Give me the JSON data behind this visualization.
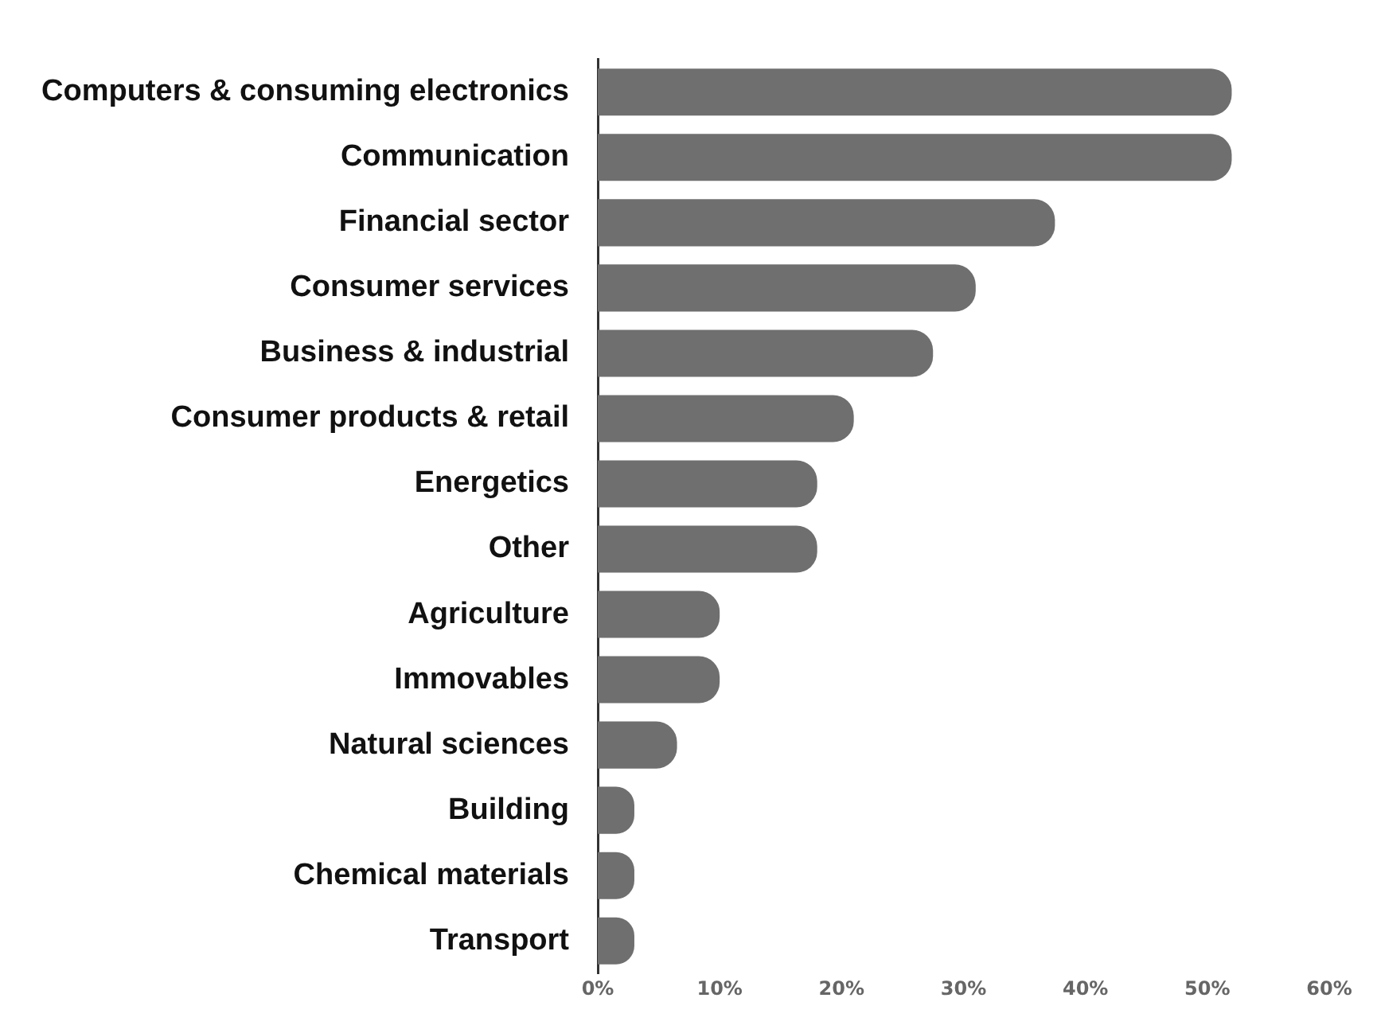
{
  "chart_data": {
    "type": "bar",
    "orientation": "horizontal",
    "categories": [
      "Computers & consuming electronics",
      "Communication",
      "Financial sector",
      "Consumer services",
      "Business & industrial",
      "Consumer products & retail",
      "Energetics",
      "Other",
      "Agriculture",
      "Immovables",
      "Natural sciences",
      "Building",
      "Chemical materials",
      "Transport"
    ],
    "values": [
      52,
      52,
      37.5,
      31,
      27.5,
      21,
      18,
      18,
      10,
      10,
      6.5,
      3,
      3,
      3
    ],
    "color": "#6f6f6f",
    "xlim": [
      0,
      60
    ],
    "xticks": [
      {
        "value": 0,
        "label": "0%"
      },
      {
        "value": 10,
        "label": "10%"
      },
      {
        "value": 20,
        "label": "20%"
      },
      {
        "value": 30,
        "label": "30%"
      },
      {
        "value": 40,
        "label": "40%"
      },
      {
        "value": 50,
        "label": "50%"
      },
      {
        "value": 60,
        "label": "60%"
      }
    ],
    "grid": false,
    "legend": false
  }
}
